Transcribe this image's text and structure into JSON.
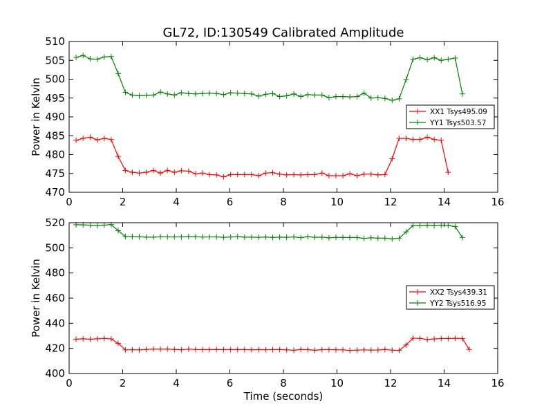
{
  "figure": {
    "title": "GL72, ID:130549 Calibrated Amplitude",
    "xlabel": "Time (seconds)"
  },
  "chart_data": [
    {
      "type": "line",
      "title": "GL72, ID:130549 Calibrated Amplitude",
      "xlabel": "",
      "ylabel": "Power in Kelvin",
      "xlim": [
        0,
        16
      ],
      "ylim": [
        470,
        510
      ],
      "xticks": [
        "0",
        "2",
        "4",
        "6",
        "8",
        "10",
        "12",
        "14",
        "16"
      ],
      "yticks": [
        "470",
        "475",
        "480",
        "485",
        "490",
        "495",
        "500",
        "505",
        "510"
      ],
      "grid": false,
      "legend_position": "center-right",
      "x": [
        0.26,
        0.52,
        0.79,
        1.05,
        1.31,
        1.57,
        1.83,
        2.1,
        2.36,
        2.62,
        2.88,
        3.15,
        3.41,
        3.67,
        3.93,
        4.19,
        4.46,
        4.72,
        4.98,
        5.24,
        5.5,
        5.77,
        6.03,
        6.29,
        6.55,
        6.81,
        7.08,
        7.34,
        7.6,
        7.86,
        8.12,
        8.39,
        8.65,
        8.91,
        9.17,
        9.44,
        9.7,
        9.96,
        10.22,
        10.48,
        10.75,
        11.01,
        11.27,
        11.53,
        11.79,
        12.06,
        12.32,
        12.58,
        12.84,
        13.1,
        13.37,
        13.63,
        13.89,
        14.15,
        14.41,
        14.68,
        14.94,
        15.2
      ],
      "series": [
        {
          "name": "XX1 Tsys495.09",
          "color": "#ff0000",
          "values": [
            483.8,
            484.3,
            484.6,
            483.9,
            484.3,
            484.0,
            479.5,
            475.8,
            475.3,
            475.1,
            475.3,
            475.8,
            475.1,
            475.8,
            475.3,
            475.7,
            475.6,
            474.9,
            475.1,
            474.7,
            474.6,
            474.1,
            474.7,
            474.7,
            474.7,
            474.7,
            474.4,
            475.1,
            475.2,
            474.8,
            474.6,
            474.7,
            474.6,
            474.7,
            474.7,
            475.1,
            474.4,
            474.4,
            474.4,
            474.9,
            474.4,
            474.8,
            474.8,
            474.6,
            474.7,
            478.9,
            484.3,
            484.3,
            484.0,
            484.0,
            484.6,
            484.0,
            483.8,
            475.3,
            null,
            null,
            null,
            null
          ]
        },
        {
          "name": "YY1 Tsys503.57",
          "color": "#008000",
          "values": [
            505.8,
            506.3,
            505.4,
            505.3,
            505.9,
            506.0,
            501.5,
            496.5,
            495.8,
            495.6,
            495.7,
            495.8,
            496.6,
            496.1,
            495.8,
            496.4,
            496.2,
            496.1,
            496.2,
            496.3,
            496.2,
            495.9,
            496.4,
            496.3,
            496.2,
            496.1,
            495.5,
            496.0,
            496.2,
            495.4,
            495.6,
            496.1,
            495.4,
            495.9,
            495.8,
            495.8,
            495.1,
            495.4,
            495.4,
            495.3,
            495.4,
            496.3,
            495.0,
            495.1,
            494.9,
            494.4,
            494.8,
            499.9,
            505.3,
            505.7,
            505.2,
            505.7,
            505.0,
            505.3,
            505.6,
            496.1,
            null,
            null
          ]
        }
      ]
    },
    {
      "type": "line",
      "title": "",
      "xlabel": "Time (seconds)",
      "ylabel": "Power in Kelvin",
      "xlim": [
        0,
        16
      ],
      "ylim": [
        400,
        520
      ],
      "xticks": [
        "0",
        "2",
        "4",
        "6",
        "8",
        "10",
        "12",
        "14",
        "16"
      ],
      "yticks": [
        "400",
        "420",
        "440",
        "460",
        "480",
        "500",
        "520"
      ],
      "grid": false,
      "legend_position": "center-right",
      "x": [
        0.26,
        0.52,
        0.79,
        1.05,
        1.31,
        1.57,
        1.83,
        2.1,
        2.36,
        2.62,
        2.88,
        3.15,
        3.41,
        3.67,
        3.93,
        4.19,
        4.46,
        4.72,
        4.98,
        5.24,
        5.5,
        5.77,
        6.03,
        6.29,
        6.55,
        6.81,
        7.08,
        7.34,
        7.6,
        7.86,
        8.12,
        8.39,
        8.65,
        8.91,
        9.17,
        9.44,
        9.7,
        9.96,
        10.22,
        10.48,
        10.75,
        11.01,
        11.27,
        11.53,
        11.79,
        12.06,
        12.32,
        12.58,
        12.84,
        13.1,
        13.37,
        13.63,
        13.89,
        14.15,
        14.41,
        14.68,
        14.94,
        15.2
      ],
      "series": [
        {
          "name": "XX2 Tsys439.31",
          "color": "#ff0000",
          "values": [
            427.3,
            427.6,
            427.3,
            427.6,
            427.9,
            427.5,
            424.0,
            418.8,
            418.9,
            418.8,
            419.1,
            419.5,
            419.3,
            419.5,
            419.1,
            418.9,
            419.4,
            419.1,
            419.0,
            419.0,
            419.1,
            419.0,
            419.0,
            419.0,
            419.0,
            418.9,
            419.0,
            418.9,
            419.0,
            419.1,
            418.8,
            418.5,
            419.1,
            419.0,
            418.5,
            419.0,
            419.0,
            418.9,
            418.8,
            418.4,
            418.6,
            418.8,
            418.6,
            418.7,
            419.1,
            418.6,
            418.4,
            422.7,
            428.1,
            427.9,
            427.1,
            427.5,
            427.8,
            427.8,
            428.0,
            427.8,
            419.1,
            null
          ]
        },
        {
          "name": "YY2 Tsys516.95",
          "color": "#008000",
          "values": [
            518.4,
            518.3,
            518.0,
            517.7,
            518.1,
            518.5,
            513.7,
            509.0,
            509.0,
            508.8,
            508.5,
            508.5,
            508.8,
            508.7,
            508.7,
            508.7,
            509.0,
            508.8,
            508.6,
            508.7,
            508.7,
            508.4,
            508.6,
            509.0,
            508.5,
            508.5,
            508.4,
            508.6,
            508.3,
            508.5,
            508.4,
            508.7,
            508.1,
            508.9,
            508.4,
            508.5,
            508.0,
            508.3,
            508.3,
            508.2,
            508.2,
            507.5,
            508.0,
            507.7,
            507.7,
            507.1,
            507.7,
            512.7,
            517.8,
            517.6,
            518.0,
            517.6,
            517.9,
            517.8,
            517.0,
            508.1,
            null,
            null
          ]
        }
      ]
    }
  ]
}
